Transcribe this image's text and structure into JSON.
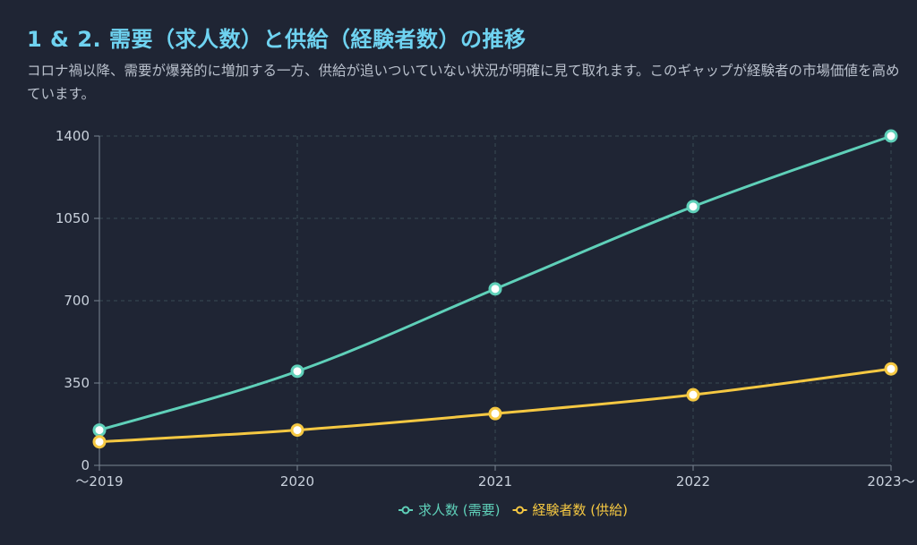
{
  "header": {
    "title": "1 & 2. 需要（求人数）と供給（経験者数）の推移",
    "subtitle": "コロナ禍以降、需要が爆発的に増加する一方、供給が追いついていない状況が明確に見て取れます。このギャップが経験者の市場価値を高めています。"
  },
  "colors": {
    "demand": "#5fd0b9",
    "supply": "#f5c842",
    "grid": "#3a4a55",
    "title": "#6fd3f1"
  },
  "chart_data": {
    "type": "line",
    "categories": [
      "〜2019",
      "2020",
      "2021",
      "2022",
      "2023〜"
    ],
    "ylim": [
      0,
      1400
    ],
    "yticks": [
      0,
      350,
      700,
      1050,
      1400
    ],
    "grid": true,
    "legend_position": "bottom-center",
    "series": [
      {
        "name": "求人数 (需要)",
        "color": "#5fd0b9",
        "values": [
          150,
          400,
          750,
          1100,
          1400
        ]
      },
      {
        "name": "経験者数 (供給)",
        "color": "#f5c842",
        "values": [
          100,
          150,
          220,
          300,
          410
        ]
      }
    ]
  }
}
